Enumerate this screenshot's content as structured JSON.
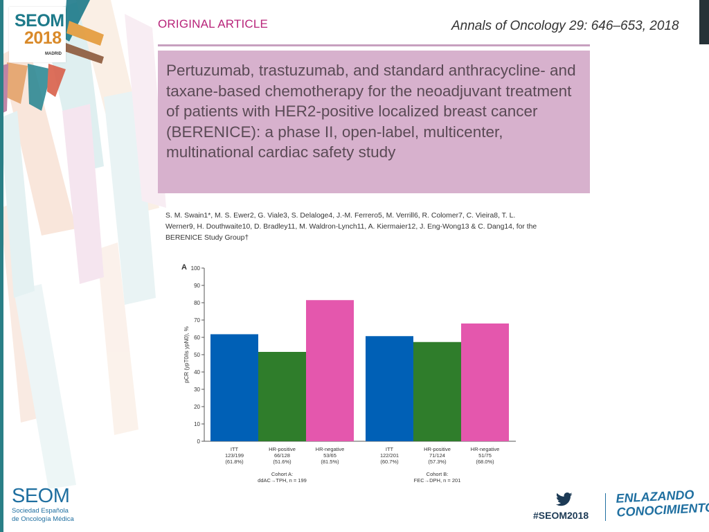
{
  "logo": {
    "line1": "SEOM",
    "line2": "2018",
    "city": "MADRID"
  },
  "article": {
    "section": "ORIGINAL ARTICLE",
    "citation": "Annals of Oncology 29: 646–653, 2018",
    "title": "Pertuzumab, trastuzumab, and standard anthracycline- and taxane-based chemotherapy for the neoadjuvant treatment of patients with HER2-positive localized breast cancer (BERENICE): a phase II, open-label, multicenter, multinational cardiac safety study",
    "authors": "S. M. Swain1*, M. S. Ewer2, G. Viale3, S. Delaloge4, J.-M. Ferrero5, M. Verrill6, R. Colomer7, C. Vieira8, T. L. Werner9, H. Douthwaite10, D. Bradley11, M. Waldron-Lynch11, A. Kiermaier12, J. Eng-Wong13 & C. Dang14, for the BERENICE Study Group†"
  },
  "colors": {
    "blue": "#0060b6",
    "green": "#2f7d2b",
    "pink": "#e457ad",
    "accent": "#b8247a"
  },
  "chart_data": {
    "type": "bar",
    "panel_label": "A",
    "ylabel": "pCR (ypT0/is ypN0), %",
    "ylim": [
      0,
      100
    ],
    "yticks": [
      0,
      10,
      20,
      30,
      40,
      50,
      60,
      70,
      80,
      90,
      100
    ],
    "bars": [
      {
        "group": 0,
        "name": "ITT",
        "line2": "123/199",
        "line3": "(61.8%)",
        "value": 61.8,
        "color": "#0060b6"
      },
      {
        "group": 0,
        "name": "HR-positive",
        "line2": "66/128",
        "line3": "(51.6%)",
        "value": 51.6,
        "color": "#2f7d2b"
      },
      {
        "group": 0,
        "name": "HR-negative",
        "line2": "53/65",
        "line3": "(81.5%)",
        "value": 81.5,
        "color": "#e457ad"
      },
      {
        "group": 1,
        "name": "ITT",
        "line2": "122/201",
        "line3": "(60.7%)",
        "value": 60.7,
        "color": "#0060b6"
      },
      {
        "group": 1,
        "name": "HR-positive",
        "line2": "71/124",
        "line3": "(57.3%)",
        "value": 57.3,
        "color": "#2f7d2b"
      },
      {
        "group": 1,
        "name": "HR-negative",
        "line2": "51/75",
        "line3": "(68.0%)",
        "value": 68.0,
        "color": "#e457ad"
      }
    ],
    "cohorts": [
      {
        "line1": "Cohort A:",
        "line2": "ddAC→TPH, n = 199"
      },
      {
        "line1": "Cohort B:",
        "line2": "FEC→DPH, n = 201"
      }
    ]
  },
  "footer": {
    "seom": "SEOM",
    "seom_sub1": "Sociedad Española",
    "seom_sub2": "de Oncología Médica",
    "hashtag": "#SEOM2018",
    "enlazando1": "ENLAZANDO",
    "enlazando2": "CONOCIMIENTO",
    "twitter_icon": "twitter-bird-icon"
  }
}
